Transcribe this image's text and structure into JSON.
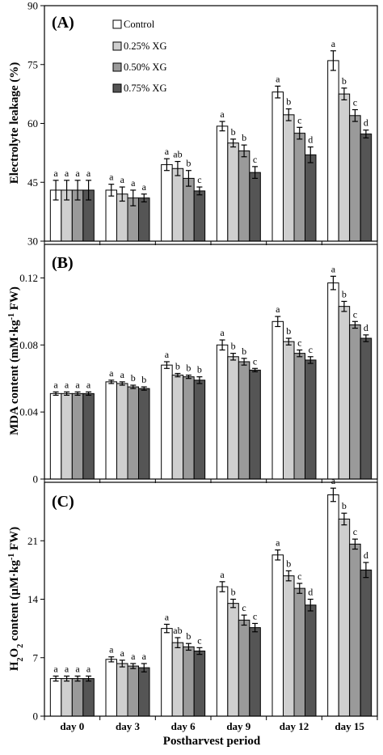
{
  "chart_data": {
    "type": "bar",
    "categories": [
      "day 0",
      "day 3",
      "day 6",
      "day 9",
      "day 12",
      "day 15"
    ],
    "xlabel": "Postharvest period",
    "legend": {
      "placement": "top-left",
      "entries": [
        "Control",
        "0.25% XG",
        "0.50% XG",
        "0.75% XG"
      ]
    },
    "series_colors": [
      "#ffffff",
      "#cfcfcf",
      "#9a9a9a",
      "#555555"
    ],
    "panels": [
      {
        "label": "(A)",
        "ylabel": "Electrolyte leakage (%)",
        "ylim": [
          30,
          90
        ],
        "yticks": [
          30,
          45,
          60,
          75,
          90
        ],
        "values": [
          [
            43.0,
            43.0,
            43.0,
            43.0
          ],
          [
            43.0,
            42.0,
            41.0,
            41.0
          ],
          [
            49.5,
            48.5,
            46.0,
            42.8
          ],
          [
            59.3,
            55.0,
            53.0,
            47.5
          ],
          [
            68.0,
            62.2,
            57.5,
            52.0
          ],
          [
            76.0,
            67.5,
            62.0,
            57.3
          ]
        ],
        "errors": [
          [
            2.5,
            2.5,
            2.5,
            2.5
          ],
          [
            1.5,
            1.8,
            2.0,
            1.0
          ],
          [
            1.5,
            1.8,
            2.0,
            1.0
          ],
          [
            1.2,
            1.0,
            1.5,
            1.5
          ],
          [
            1.5,
            1.5,
            1.5,
            2.0
          ],
          [
            2.5,
            1.5,
            1.5,
            1.0
          ]
        ],
        "letters": [
          [
            "a",
            "a",
            "a",
            "a"
          ],
          [
            "a",
            "a",
            "a",
            "a"
          ],
          [
            "a",
            "ab",
            "b",
            "c"
          ],
          [
            "a",
            "b",
            "b",
            "c"
          ],
          [
            "a",
            "b",
            "c",
            "d"
          ],
          [
            "a",
            "b",
            "c",
            "d"
          ]
        ]
      },
      {
        "label": "(B)",
        "ylabel_main": "MDA content (mM·kg",
        "ylabel_sup": "-1",
        "ylabel_end": " FW)",
        "ylim": [
          0,
          0.14
        ],
        "yticks": [
          0,
          0.04,
          0.08,
          0.12
        ],
        "ytick_labels": [
          "0",
          "0.04",
          "0.08",
          "0.12"
        ],
        "values": [
          [
            0.051,
            0.051,
            0.051,
            0.051
          ],
          [
            0.058,
            0.057,
            0.055,
            0.054
          ],
          [
            0.068,
            0.062,
            0.061,
            0.059
          ],
          [
            0.08,
            0.073,
            0.07,
            0.065
          ],
          [
            0.094,
            0.082,
            0.075,
            0.071
          ],
          [
            0.117,
            0.103,
            0.092,
            0.084
          ]
        ],
        "errors": [
          [
            0.001,
            0.001,
            0.001,
            0.001
          ],
          [
            0.001,
            0.001,
            0.001,
            0.001
          ],
          [
            0.002,
            0.001,
            0.001,
            0.002
          ],
          [
            0.003,
            0.002,
            0.002,
            0.001
          ],
          [
            0.003,
            0.002,
            0.002,
            0.002
          ],
          [
            0.004,
            0.003,
            0.002,
            0.002
          ]
        ],
        "letters": [
          [
            "a",
            "a",
            "a",
            "a"
          ],
          [
            "a",
            "a",
            "b",
            "b"
          ],
          [
            "a",
            "b",
            "b",
            "b"
          ],
          [
            "a",
            "b",
            "b",
            "c"
          ],
          [
            "a",
            "b",
            "c",
            "c"
          ],
          [
            "a",
            "b",
            "c",
            "d"
          ]
        ]
      },
      {
        "label": "(C)",
        "ylabel_pre": "H",
        "ylabel_sub1": "2",
        "ylabel_mid": "O",
        "ylabel_sub2": "2",
        "ylabel_main": " content (µM·kg",
        "ylabel_sup": "-1",
        "ylabel_end": " FW)",
        "ylim": [
          0,
          28
        ],
        "yticks": [
          0,
          7,
          14,
          21
        ],
        "values": [
          [
            4.5,
            4.5,
            4.5,
            4.5
          ],
          [
            6.8,
            6.3,
            6.0,
            5.8
          ],
          [
            10.5,
            8.8,
            8.3,
            7.8
          ],
          [
            15.5,
            13.5,
            11.5,
            10.6
          ],
          [
            19.3,
            16.8,
            15.3,
            13.3
          ],
          [
            26.5,
            23.6,
            20.6,
            17.5
          ]
        ],
        "errors": [
          [
            0.3,
            0.3,
            0.3,
            0.3
          ],
          [
            0.3,
            0.4,
            0.3,
            0.5
          ],
          [
            0.5,
            0.6,
            0.4,
            0.4
          ],
          [
            0.6,
            0.5,
            0.6,
            0.5
          ],
          [
            0.6,
            0.6,
            0.6,
            0.7
          ],
          [
            0.8,
            0.7,
            0.6,
            0.9
          ]
        ],
        "letters": [
          [
            "a",
            "a",
            "a",
            "a"
          ],
          [
            "a",
            "a",
            "a",
            "a"
          ],
          [
            "a",
            "ab",
            "b",
            "c"
          ],
          [
            "a",
            "b",
            "c",
            "c"
          ],
          [
            "a",
            "b",
            "c",
            "d"
          ],
          [
            "a",
            "b",
            "c",
            "d"
          ]
        ]
      }
    ]
  }
}
